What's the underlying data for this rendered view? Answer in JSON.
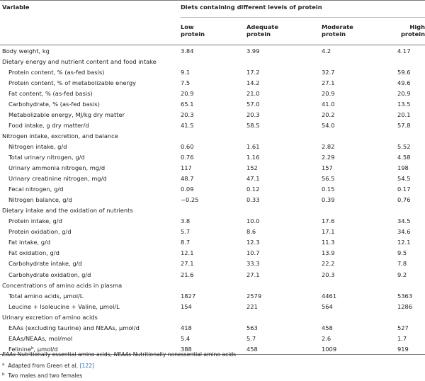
{
  "table": {
    "header": {
      "variable_label": "Variable",
      "group_label": "Diets containing different levels of protein",
      "columns": [
        [
          "Low",
          "protein"
        ],
        [
          "Adequate",
          "protein"
        ],
        [
          "Moderate",
          "protein"
        ],
        [
          "High",
          "protein"
        ]
      ]
    },
    "rows": [
      {
        "label": "Body weight, kg",
        "values": [
          "3.84",
          "3.99",
          "4.2",
          "4.17"
        ],
        "indent": false
      },
      {
        "label": "Dietary energy and nutrient content and food intake",
        "values": null,
        "indent": false
      },
      {
        "label": "Protein content, % (as-fed basis)",
        "values": [
          "9.1",
          "17.2",
          "32.7",
          "59.6"
        ],
        "indent": true
      },
      {
        "label": "Protein content, % of metabolizable energy",
        "values": [
          "7.5",
          "14.2",
          "27.1",
          "49.6"
        ],
        "indent": true
      },
      {
        "label": "Fat content, % (as-fed basis)",
        "values": [
          "20.9",
          "21.0",
          "20.9",
          "20.9"
        ],
        "indent": true
      },
      {
        "label": "Carbohydrate, % (as-fed basis)",
        "values": [
          "65.1",
          "57.0",
          "41.0",
          "13.5"
        ],
        "indent": true
      },
      {
        "label": "Metabolizable energy, MJ/kg dry matter",
        "values": [
          "20.3",
          "20.3",
          "20.2",
          "20.1"
        ],
        "indent": true
      },
      {
        "label": "Food intake, g dry matter/d",
        "values": [
          "41.5",
          "58.5",
          "54.0",
          "57.8"
        ],
        "indent": true
      },
      {
        "label": "Nitrogen intake, excretion, and balance",
        "values": null,
        "indent": false
      },
      {
        "label": "Nitrogen intake, g/d",
        "values": [
          "0.60",
          "1.61",
          "2.82",
          "5.52"
        ],
        "indent": true
      },
      {
        "label": "Total urinary nitrogen, g/d",
        "values": [
          "0.76",
          "1.16",
          "2.29",
          "4.58"
        ],
        "indent": true
      },
      {
        "label": "Urinary ammonia nitrogen, mg/d",
        "values": [
          "117",
          "152",
          "157",
          "198"
        ],
        "indent": true
      },
      {
        "label": "Urinary creatinine nitrogen, mg/d",
        "values": [
          "48.7",
          "47.1",
          "56.5",
          "54.5"
        ],
        "indent": true
      },
      {
        "label": "Fecal nitrogen, g/d",
        "values": [
          "0.09",
          "0.12",
          "0.15",
          "0.17"
        ],
        "indent": true
      },
      {
        "label": "Nitrogen balance, g/d",
        "values": [
          "−0.25",
          "0.33",
          "0.39",
          "0.76"
        ],
        "indent": true
      },
      {
        "label": "Dietary intake and the oxidation of nutrients",
        "values": null,
        "indent": false
      },
      {
        "label": "Protein intake, g/d",
        "values": [
          "3.8",
          "10.0",
          "17.6",
          "34.5"
        ],
        "indent": true
      },
      {
        "label": "Protein oxidation, g/d",
        "values": [
          "5.7",
          "8.6",
          "17.1",
          "34.6"
        ],
        "indent": true
      },
      {
        "label": "Fat intake, g/d",
        "values": [
          "8.7",
          "12.3",
          "11.3",
          "12.1"
        ],
        "indent": true
      },
      {
        "label": "Fat oxidation, g/d",
        "values": [
          "12.1",
          "10.7",
          "13.9",
          "9.5"
        ],
        "indent": true
      },
      {
        "label": "Carbohydrate intake, g/d",
        "values": [
          "27.1",
          "33.3",
          "22.2",
          "7.8"
        ],
        "indent": true
      },
      {
        "label": "Carbohydrate oxidation, g/d",
        "values": [
          "21.6",
          "27.1",
          "20.3",
          "9.2"
        ],
        "indent": true
      },
      {
        "label": "Concentrations of amino acids in plasma",
        "values": null,
        "indent": false
      },
      {
        "label": "Total amino acids, µmol/L",
        "values": [
          "1827",
          "2579",
          "4461",
          "5363"
        ],
        "indent": true
      },
      {
        "label": "Leucine + Isoleucine + Valine, µmol/L",
        "values": [
          "154",
          "221",
          "564",
          "1286"
        ],
        "indent": true
      },
      {
        "label": "Urinary excretion of amino acids",
        "values": null,
        "indent": false
      },
      {
        "label": "EAAs (excluding taurine) and NEAAs, µmol/d",
        "values": [
          "418",
          "563",
          "458",
          "527"
        ],
        "indent": true
      },
      {
        "label": "EAAs/NEAAs, mol/mol",
        "values": [
          "5.4",
          "5.7",
          "2.6",
          "1.7"
        ],
        "indent": true
      },
      {
        "label": "Felinine",
        "label_sup": "b",
        "label_after": ", µmol/d",
        "values": [
          "388",
          "458",
          "1009",
          "919"
        ],
        "indent": true
      }
    ]
  },
  "notes": {
    "abbrev": {
      "eaas": "EAAs",
      "eaas_def": " Nutritionally essential amino acids, ",
      "neaas": "NEAAs",
      "neaas_def": " Nutritionally nonessential amino acids"
    },
    "a": {
      "mark": "a",
      "text": "Adapted from Green et al. ",
      "ref": "[122]"
    },
    "b": {
      "mark": "b",
      "text": "Two males and two females"
    }
  }
}
